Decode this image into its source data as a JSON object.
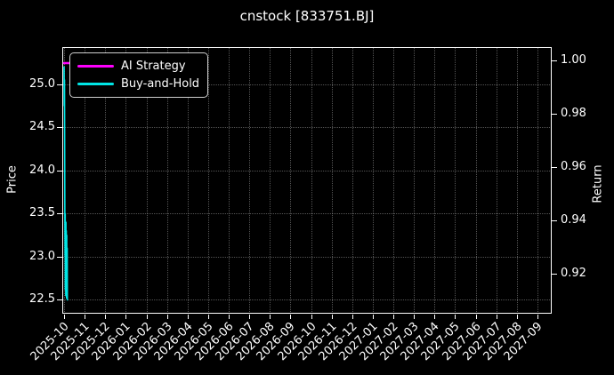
{
  "window": {
    "title": "cnstock [833751.BJ]"
  },
  "colors": {
    "background": "#000000",
    "foreground": "#ffffff",
    "grid": "rgba(255,255,255,0.33)",
    "ai_strategy": "#ff00ff",
    "buy_and_hold": "#00e5e5"
  },
  "chart_data": {
    "type": "line",
    "title": "cnstock [833751.BJ]",
    "xlabel": "",
    "left_ylabel": "Price",
    "right_ylabel": "Return",
    "grid": true,
    "x_tick_labels": [
      "2025-10",
      "2025-11",
      "2025-12",
      "2026-01",
      "2026-02",
      "2026-03",
      "2026-04",
      "2026-05",
      "2026-06",
      "2026-07",
      "2026-08",
      "2026-09",
      "2026-10",
      "2026-11",
      "2026-12",
      "2027-01",
      "2027-02",
      "2027-03",
      "2027-04",
      "2027-05",
      "2027-06",
      "2027-07",
      "2027-08",
      "2027-09"
    ],
    "left_ticks": [
      "25.0",
      "24.5",
      "24.0",
      "23.5",
      "23.0",
      "22.5"
    ],
    "right_ticks": [
      "1.00",
      "0.98",
      "0.96",
      "0.94",
      "0.92"
    ],
    "left_ylim": [
      22.34,
      25.43
    ],
    "right_ylim": [
      0.905,
      1.005
    ],
    "legend": {
      "position": "upper-left",
      "entries": [
        {
          "label": "AI Strategy",
          "color": "#ff00ff"
        },
        {
          "label": "Buy-and-Hold",
          "color": "#00e5e5"
        }
      ]
    },
    "data_note": "Both series span only the first few days near 2025-10: Buy-and-Hold price falls from ~25.2 to ~22.5 oscillating between 22.5 and 23.5; AI Strategy return stays flat at ~1.00.",
    "series": [
      {
        "name": "AI Strategy",
        "axis": "right",
        "color": "#ff00ff",
        "width": 2.5,
        "points": [
          [
            0,
            0.999
          ],
          [
            2.0,
            0.999
          ]
        ]
      },
      {
        "name": "Buy-and-Hold",
        "axis": "left",
        "color": "#00e5e5",
        "width": 1.6,
        "points": [
          [
            0.0,
            25.2
          ],
          [
            0.01,
            24.75
          ],
          [
            0.02,
            25.05
          ],
          [
            0.03,
            24.2
          ],
          [
            0.04,
            23.45
          ],
          [
            0.05,
            23.0
          ],
          [
            0.055,
            23.5
          ],
          [
            0.06,
            22.62
          ],
          [
            0.07,
            23.35
          ],
          [
            0.08,
            22.55
          ],
          [
            0.09,
            23.4
          ],
          [
            0.1,
            22.6
          ],
          [
            0.11,
            23.3
          ],
          [
            0.12,
            22.52
          ],
          [
            0.13,
            23.25
          ],
          [
            0.14,
            22.58
          ],
          [
            0.15,
            23.1
          ],
          [
            0.16,
            22.5
          ]
        ]
      }
    ]
  }
}
